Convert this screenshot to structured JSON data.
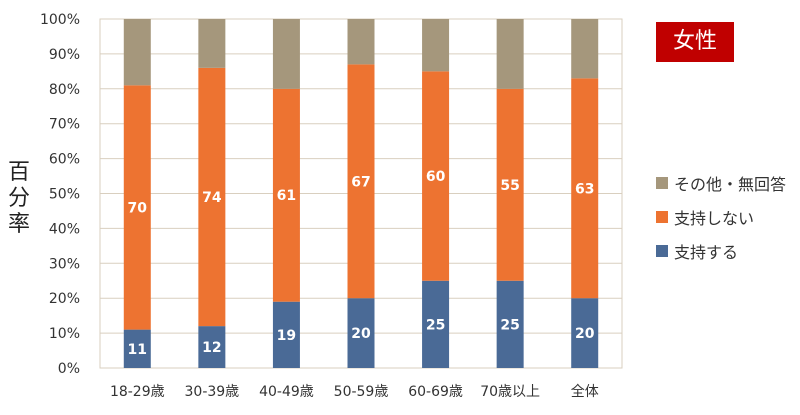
{
  "chart_data": {
    "type": "bar",
    "stacked": true,
    "categories": [
      "18-29歳",
      "30-39歳",
      "40-49歳",
      "50-59歳",
      "60-69歳",
      "70歳以上",
      "全体"
    ],
    "series": [
      {
        "name": "支持する",
        "values": [
          11,
          12,
          19,
          20,
          25,
          25,
          20
        ],
        "color": "#4a6a96"
      },
      {
        "name": "支持しない",
        "values": [
          70,
          74,
          61,
          67,
          60,
          55,
          63
        ],
        "color": "#ed7331"
      },
      {
        "name": "その他・無回答",
        "values": [
          19,
          14,
          20,
          13,
          15,
          20,
          17
        ],
        "color": "#a5977c"
      }
    ],
    "ylabel": "百分率",
    "yticks": [
      "0%",
      "10%",
      "20%",
      "30%",
      "40%",
      "50%",
      "60%",
      "70%",
      "80%",
      "90%",
      "100%"
    ],
    "ylim": [
      0,
      100
    ],
    "grid": true,
    "legend_position": "right"
  },
  "badge": {
    "text": "女性",
    "color": "#c00000"
  },
  "legend": [
    {
      "label": "その他・無回答",
      "color": "#a5977c"
    },
    {
      "label": "支持しない",
      "color": "#ed7331"
    },
    {
      "label": "支持する",
      "color": "#4a6a96"
    }
  ]
}
